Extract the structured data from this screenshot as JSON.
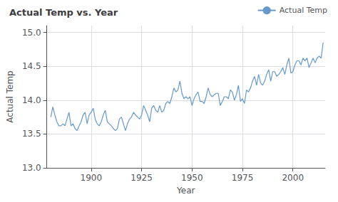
{
  "chart_data": {
    "type": "line",
    "title": "Actual Temp vs. Year",
    "xlabel": "Year",
    "ylabel": "Actual Temp",
    "x": [
      1880,
      1881,
      1882,
      1883,
      1884,
      1885,
      1886,
      1887,
      1888,
      1889,
      1890,
      1891,
      1892,
      1893,
      1894,
      1895,
      1896,
      1897,
      1898,
      1899,
      1900,
      1901,
      1902,
      1903,
      1904,
      1905,
      1906,
      1907,
      1908,
      1909,
      1910,
      1911,
      1912,
      1913,
      1914,
      1915,
      1916,
      1917,
      1918,
      1919,
      1920,
      1921,
      1922,
      1923,
      1924,
      1925,
      1926,
      1927,
      1928,
      1929,
      1930,
      1931,
      1932,
      1933,
      1934,
      1935,
      1936,
      1937,
      1938,
      1939,
      1940,
      1941,
      1942,
      1943,
      1944,
      1945,
      1946,
      1947,
      1948,
      1949,
      1950,
      1951,
      1952,
      1953,
      1954,
      1955,
      1956,
      1957,
      1958,
      1959,
      1960,
      1961,
      1962,
      1963,
      1964,
      1965,
      1966,
      1967,
      1968,
      1969,
      1970,
      1971,
      1972,
      1973,
      1974,
      1975,
      1976,
      1977,
      1978,
      1979,
      1980,
      1981,
      1982,
      1983,
      1984,
      1985,
      1986,
      1987,
      1988,
      1989,
      1990,
      1991,
      1992,
      1993,
      1994,
      1995,
      1996,
      1997,
      1998,
      1999,
      2000,
      2001,
      2002,
      2003,
      2004,
      2005,
      2006,
      2007,
      2008,
      2009,
      2010,
      2011,
      2012,
      2013,
      2014,
      2015
    ],
    "series": [
      {
        "name": "Actual Temp",
        "color": "#6699cc",
        "values": [
          13.75,
          13.9,
          13.78,
          13.68,
          13.62,
          13.62,
          13.65,
          13.62,
          13.72,
          13.82,
          13.62,
          13.65,
          13.58,
          13.55,
          13.62,
          13.68,
          13.78,
          13.82,
          13.65,
          13.78,
          13.82,
          13.88,
          13.72,
          13.65,
          13.62,
          13.68,
          13.78,
          13.85,
          13.68,
          13.65,
          13.62,
          13.58,
          13.55,
          13.58,
          13.72,
          13.75,
          13.65,
          13.55,
          13.65,
          13.72,
          13.75,
          13.82,
          13.78,
          13.75,
          13.72,
          13.78,
          13.92,
          13.85,
          13.78,
          13.68,
          13.88,
          13.92,
          13.85,
          13.82,
          13.92,
          13.82,
          13.85,
          13.95,
          13.98,
          13.95,
          14.05,
          14.18,
          14.12,
          14.15,
          14.28,
          14.1,
          14.02,
          14.05,
          14.02,
          14.05,
          13.92,
          14.02,
          14.08,
          14.12,
          13.98,
          13.98,
          13.95,
          14.05,
          14.18,
          14.08,
          14.05,
          14.08,
          14.1,
          14.1,
          13.92,
          13.98,
          14.05,
          14.05,
          14.02,
          14.15,
          14.12,
          14.0,
          14.08,
          14.22,
          13.98,
          14.02,
          13.95,
          14.15,
          14.12,
          14.18,
          14.28,
          14.35,
          14.22,
          14.38,
          14.25,
          14.22,
          14.28,
          14.38,
          14.45,
          14.28,
          14.42,
          14.42,
          14.35,
          14.38,
          14.42,
          14.48,
          14.38,
          14.52,
          14.62,
          14.4,
          14.42,
          14.52,
          14.58,
          14.58,
          14.52,
          14.62,
          14.58,
          14.62,
          14.48,
          14.55,
          14.62,
          14.55,
          14.62,
          14.65,
          14.62,
          14.85
        ]
      }
    ],
    "xlim": [
      1878,
      2016
    ],
    "xticks": [
      1900,
      1925,
      1950,
      1975,
      2000
    ],
    "ylim": [
      13.0,
      15.1
    ],
    "yticks": [
      {
        "value": 13.0,
        "label": "13.0"
      },
      13.5,
      {
        "value": 14.0,
        "label": "14.0"
      },
      14.5,
      {
        "value": 15.0,
        "label": "15.0"
      }
    ],
    "grid": true,
    "legend": "upper right"
  }
}
